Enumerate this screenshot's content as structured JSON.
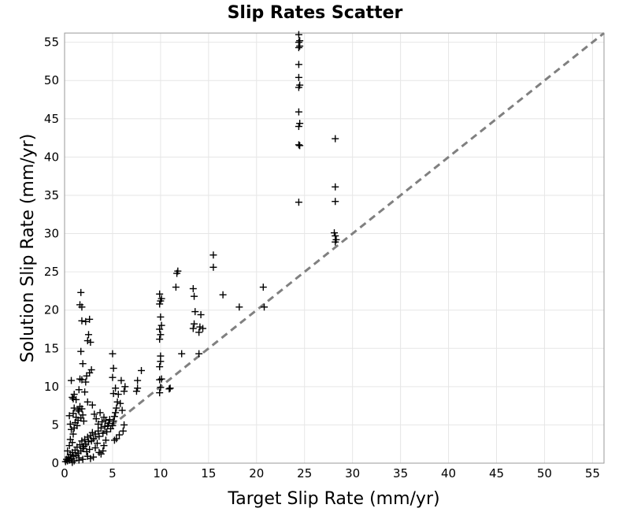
{
  "chart_data": {
    "type": "scatter",
    "title": "Slip Rates Scatter",
    "xlabel": "Target Slip Rate (mm/yr)",
    "ylabel": "Solution Slip Rate (mm/yr)",
    "xlim": [
      0,
      56.2
    ],
    "ylim": [
      0,
      56.2
    ],
    "xticks": [
      0,
      5,
      10,
      15,
      20,
      25,
      30,
      35,
      40,
      45,
      50,
      55
    ],
    "yticks": [
      0,
      5,
      10,
      15,
      20,
      25,
      30,
      35,
      40,
      45,
      50,
      55
    ],
    "grid": true,
    "marker": "plus",
    "reference_line": {
      "style": "dashed",
      "from": [
        0,
        0
      ],
      "to": [
        56.2,
        56.2
      ]
    },
    "colors": {
      "points": "#000000",
      "reference_line": "#808080",
      "grid": "#e6e6e6",
      "frame": "#999999"
    },
    "points": [
      [
        0.1,
        0.2
      ],
      [
        0.2,
        0.5
      ],
      [
        0.3,
        0.3
      ],
      [
        0.4,
        0.8
      ],
      [
        0.5,
        0.4
      ],
      [
        0.6,
        1.1
      ],
      [
        0.7,
        0.6
      ],
      [
        0.8,
        1.4
      ],
      [
        0.9,
        0.9
      ],
      [
        1.0,
        0.3
      ],
      [
        1.1,
        1.7
      ],
      [
        1.2,
        1.0
      ],
      [
        1.3,
        2.1
      ],
      [
        1.4,
        1.3
      ],
      [
        1.5,
        0.7
      ],
      [
        1.6,
        2.4
      ],
      [
        1.7,
        1.6
      ],
      [
        1.8,
        2.9
      ],
      [
        1.9,
        1.9
      ],
      [
        2.0,
        2.2
      ],
      [
        2.1,
        3.1
      ],
      [
        2.2,
        2.5
      ],
      [
        2.3,
        1.5
      ],
      [
        2.4,
        3.4
      ],
      [
        2.5,
        2.8
      ],
      [
        2.6,
        1.8
      ],
      [
        2.7,
        3.6
      ],
      [
        2.8,
        2.9
      ],
      [
        2.9,
        4.0
      ],
      [
        3.0,
        3.2
      ],
      [
        3.2,
        3.8
      ],
      [
        3.4,
        2.6
      ],
      [
        3.5,
        4.2
      ],
      [
        3.6,
        3.5
      ],
      [
        3.8,
        4.6
      ],
      [
        4.0,
        3.9
      ],
      [
        4.2,
        4.8
      ],
      [
        4.4,
        4.1
      ],
      [
        4.6,
        5.2
      ],
      [
        4.8,
        4.5
      ],
      [
        0.3,
        1.6
      ],
      [
        0.5,
        2.3
      ],
      [
        0.6,
        3.1
      ],
      [
        0.8,
        2.7
      ],
      [
        0.9,
        3.8
      ],
      [
        1.0,
        4.6
      ],
      [
        1.1,
        5.3
      ],
      [
        1.2,
        6.0
      ],
      [
        1.3,
        4.9
      ],
      [
        1.4,
        5.6
      ],
      [
        0.5,
        6.2
      ],
      [
        0.6,
        5.1
      ],
      [
        0.7,
        4.4
      ],
      [
        0.9,
        6.5
      ],
      [
        1.0,
        7.2
      ],
      [
        1.2,
        8.3
      ],
      [
        1.4,
        7.0
      ],
      [
        1.5,
        6.8
      ],
      [
        1.6,
        7.4
      ],
      [
        1.7,
        5.9
      ],
      [
        1.8,
        7.1
      ],
      [
        1.9,
        6.3
      ],
      [
        2.0,
        5.5
      ],
      [
        0.8,
        8.6
      ],
      [
        0.9,
        8.4
      ],
      [
        1.5,
        9.6
      ],
      [
        1.6,
        11.0
      ],
      [
        1.8,
        10.9
      ],
      [
        2.2,
        10.6
      ],
      [
        2.3,
        11.4
      ],
      [
        2.6,
        11.8
      ],
      [
        2.8,
        12.2
      ],
      [
        1.9,
        13.0
      ],
      [
        1.7,
        14.6
      ],
      [
        2.4,
        16.0
      ],
      [
        2.5,
        16.8
      ],
      [
        2.7,
        15.8
      ],
      [
        2.2,
        18.5
      ],
      [
        2.6,
        18.8
      ],
      [
        1.8,
        18.6
      ],
      [
        1.6,
        20.7
      ],
      [
        1.8,
        20.4
      ],
      [
        1.7,
        22.3
      ],
      [
        0.7,
        10.8
      ],
      [
        1.0,
        9.0
      ],
      [
        2.1,
        9.3
      ],
      [
        2.4,
        8.0
      ],
      [
        2.9,
        7.6
      ],
      [
        3.1,
        6.4
      ],
      [
        3.3,
        5.8
      ],
      [
        3.5,
        5.1
      ],
      [
        3.7,
        6.6
      ],
      [
        3.9,
        5.4
      ],
      [
        4.1,
        6.0
      ],
      [
        4.3,
        5.6
      ],
      [
        4.5,
        4.9
      ],
      [
        4.7,
        5.7
      ],
      [
        3.2,
        2.0
      ],
      [
        3.6,
        1.4
      ],
      [
        3.8,
        1.2
      ],
      [
        4.1,
        2.3
      ],
      [
        4.3,
        3.0
      ],
      [
        4.0,
        1.6
      ],
      [
        2.4,
        0.9
      ],
      [
        2.7,
        0.6
      ],
      [
        3.0,
        0.8
      ],
      [
        1.9,
        0.5
      ],
      [
        1.5,
        0.4
      ],
      [
        0.8,
        0.1
      ],
      [
        0.4,
        0.6
      ],
      [
        5.0,
        4.9
      ],
      [
        5.1,
        5.5
      ],
      [
        5.2,
        6.1
      ],
      [
        5.3,
        6.6
      ],
      [
        5.4,
        7.2
      ],
      [
        5.5,
        8.0
      ],
      [
        5.1,
        9.1
      ],
      [
        5.3,
        9.8
      ],
      [
        5.0,
        11.2
      ],
      [
        5.1,
        12.4
      ],
      [
        5.0,
        14.3
      ],
      [
        5.6,
        9.0
      ],
      [
        5.8,
        7.8
      ],
      [
        6.0,
        6.9
      ],
      [
        6.2,
        5.0
      ],
      [
        6.1,
        4.2
      ],
      [
        5.7,
        3.7
      ],
      [
        5.4,
        3.2
      ],
      [
        5.2,
        3.0
      ],
      [
        5.9,
        10.8
      ],
      [
        6.3,
        10.0
      ],
      [
        6.2,
        9.4
      ],
      [
        7.5,
        9.4
      ],
      [
        7.6,
        9.8
      ],
      [
        7.6,
        10.8
      ],
      [
        8.0,
        12.1
      ],
      [
        9.9,
        9.2
      ],
      [
        10.0,
        9.9
      ],
      [
        10.9,
        9.7
      ],
      [
        11.0,
        9.8
      ],
      [
        9.9,
        10.9
      ],
      [
        10.1,
        11.0
      ],
      [
        9.9,
        12.6
      ],
      [
        10.0,
        13.3
      ],
      [
        10.0,
        14.0
      ],
      [
        9.9,
        16.2
      ],
      [
        10.0,
        16.8
      ],
      [
        9.9,
        17.5
      ],
      [
        10.1,
        18.0
      ],
      [
        10.0,
        19.1
      ],
      [
        9.9,
        20.8
      ],
      [
        10.0,
        21.2
      ],
      [
        10.1,
        21.5
      ],
      [
        9.9,
        22.1
      ],
      [
        11.6,
        23.0
      ],
      [
        11.7,
        24.8
      ],
      [
        11.8,
        25.1
      ],
      [
        12.2,
        14.3
      ],
      [
        13.4,
        17.6
      ],
      [
        13.5,
        18.2
      ],
      [
        13.6,
        19.8
      ],
      [
        13.5,
        21.8
      ],
      [
        13.4,
        22.8
      ],
      [
        14.0,
        17.1
      ],
      [
        14.1,
        17.8
      ],
      [
        14.4,
        17.6
      ],
      [
        14.2,
        19.4
      ],
      [
        14.0,
        14.3
      ],
      [
        15.5,
        27.2
      ],
      [
        15.5,
        25.6
      ],
      [
        16.5,
        22.0
      ],
      [
        18.2,
        20.4
      ],
      [
        20.7,
        23.0
      ],
      [
        20.8,
        20.4
      ],
      [
        24.4,
        34.1
      ],
      [
        24.5,
        41.5
      ],
      [
        24.4,
        41.6
      ],
      [
        24.4,
        44.0
      ],
      [
        24.5,
        44.4
      ],
      [
        24.4,
        45.9
      ],
      [
        24.4,
        49.1
      ],
      [
        24.5,
        49.4
      ],
      [
        24.4,
        50.4
      ],
      [
        24.4,
        52.1
      ],
      [
        24.4,
        54.3
      ],
      [
        24.5,
        54.5
      ],
      [
        24.4,
        55.0
      ],
      [
        24.5,
        55.2
      ],
      [
        24.4,
        56.0
      ],
      [
        28.2,
        42.4
      ],
      [
        28.2,
        36.1
      ],
      [
        28.2,
        34.2
      ],
      [
        28.1,
        30.1
      ],
      [
        28.2,
        29.7
      ],
      [
        28.3,
        29.2
      ],
      [
        28.2,
        28.9
      ]
    ]
  }
}
